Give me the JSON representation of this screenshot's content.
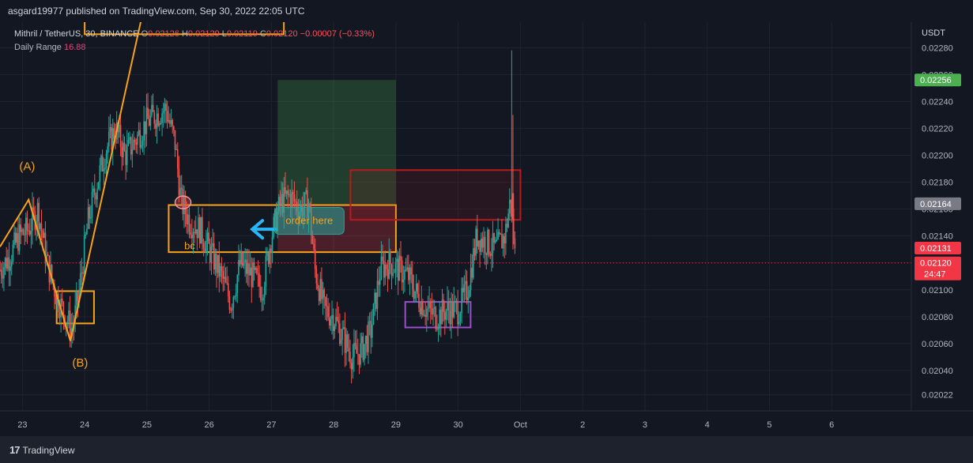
{
  "header": {
    "published_by": "asgard19977 published on TradingView.com, Sep 30, 2022 22:05 UTC"
  },
  "legend": {
    "symbol": "Mithril / TetherUS, 30, BINANCE",
    "open_label": "O",
    "open": "0.02126",
    "high_label": "H",
    "high": "0.02129",
    "low_label": "L",
    "low": "0.02119",
    "close_label": "C",
    "close": "0.02120",
    "change": "−0.00007 (−0.33%)",
    "indicator_label": "Daily Range",
    "indicator_value": "16.88"
  },
  "footer": {
    "brand": "TradingView",
    "brand_mark": "17"
  },
  "colors": {
    "background": "#131722",
    "up": "#26a69a",
    "down": "#ef5350",
    "annotation": "#f7a21b",
    "arrow": "#29b6f6",
    "box_purple": "#9c4dcc",
    "box_red": "#b71c1c",
    "price_green": "#4caf50",
    "price_red": "#f23645",
    "price_gray": "#787b86"
  },
  "chart_data": {
    "type": "candlestick",
    "currency": "USDT",
    "ylim": [
      0.0201,
      0.02299
    ],
    "y_ticks": [
      "0.02022",
      "0.02040",
      "0.02060",
      "0.02080",
      "0.02100",
      "0.02120",
      "0.02140",
      "0.02160",
      "0.02180",
      "0.02200",
      "0.02220",
      "0.02240",
      "0.02260",
      "0.02280"
    ],
    "x_ticks": [
      {
        "label": "23",
        "t": 23.0
      },
      {
        "label": "24",
        "t": 24.0
      },
      {
        "label": "25",
        "t": 25.0
      },
      {
        "label": "26",
        "t": 26.0
      },
      {
        "label": "27",
        "t": 27.0
      },
      {
        "label": "28",
        "t": 28.0
      },
      {
        "label": "29",
        "t": 29.0
      },
      {
        "label": "30",
        "t": 30.0
      },
      {
        "label": "Oct",
        "t": 31.0
      },
      {
        "label": "2",
        "t": 32.0
      },
      {
        "label": "3",
        "t": 33.0
      },
      {
        "label": "4",
        "t": 34.0
      },
      {
        "label": "5",
        "t": 35.0
      },
      {
        "label": "6",
        "t": 36.0
      }
    ],
    "xlim": [
      22.64,
      37.28
    ],
    "price_path": [
      [
        22.64,
        0.02115
      ],
      [
        22.8,
        0.02125
      ],
      [
        22.95,
        0.0214
      ],
      [
        23.1,
        0.02145
      ],
      [
        23.25,
        0.0216
      ],
      [
        23.4,
        0.0212
      ],
      [
        23.55,
        0.02095
      ],
      [
        23.7,
        0.0208
      ],
      [
        23.8,
        0.0207
      ],
      [
        23.9,
        0.02095
      ],
      [
        24.05,
        0.0215
      ],
      [
        24.2,
        0.0218
      ],
      [
        24.35,
        0.02205
      ],
      [
        24.5,
        0.0222
      ],
      [
        24.65,
        0.022
      ],
      [
        24.8,
        0.0221
      ],
      [
        25.0,
        0.02225
      ],
      [
        25.15,
        0.0223
      ],
      [
        25.3,
        0.02235
      ],
      [
        25.45,
        0.0221
      ],
      [
        25.55,
        0.02165
      ],
      [
        25.7,
        0.0215
      ],
      [
        25.85,
        0.02145
      ],
      [
        26.0,
        0.0213
      ],
      [
        26.2,
        0.0211
      ],
      [
        26.35,
        0.0209
      ],
      [
        26.5,
        0.0212
      ],
      [
        26.7,
        0.0211
      ],
      [
        26.85,
        0.021
      ],
      [
        27.0,
        0.0214
      ],
      [
        27.15,
        0.02165
      ],
      [
        27.3,
        0.0217
      ],
      [
        27.45,
        0.0216
      ],
      [
        27.6,
        0.02165
      ],
      [
        27.7,
        0.02115
      ],
      [
        27.85,
        0.02085
      ],
      [
        28.0,
        0.0208
      ],
      [
        28.15,
        0.02065
      ],
      [
        28.3,
        0.0205
      ],
      [
        28.45,
        0.02055
      ],
      [
        28.6,
        0.0207
      ],
      [
        28.75,
        0.02115
      ],
      [
        28.9,
        0.0212
      ],
      [
        29.05,
        0.02115
      ],
      [
        29.2,
        0.0211
      ],
      [
        29.35,
        0.02095
      ],
      [
        29.5,
        0.02085
      ],
      [
        29.65,
        0.0208
      ],
      [
        29.8,
        0.02085
      ],
      [
        30.0,
        0.02085
      ],
      [
        30.15,
        0.021
      ],
      [
        30.3,
        0.0214
      ],
      [
        30.45,
        0.02135
      ],
      [
        30.6,
        0.0213
      ],
      [
        30.75,
        0.0214
      ],
      [
        30.85,
        0.0217
      ],
      [
        30.92,
        0.0212
      ]
    ],
    "last_price": "0.02120",
    "countdown": "24:47",
    "price_labels": [
      {
        "value": "0.02256",
        "price": 0.02256,
        "color": "#4caf50"
      },
      {
        "value": "0.02164",
        "price": 0.02164,
        "color": "#787b86"
      },
      {
        "value": "0.02131",
        "price": 0.02131,
        "color": "#f23645"
      }
    ],
    "annotations": {
      "label_a": "(A)",
      "label_b": "(B)",
      "label_bc": "bc",
      "order_note": "order here",
      "wave_path": [
        [
          22.64,
          0.02132
        ],
        [
          23.1,
          0.02167
        ],
        [
          23.77,
          0.02062
        ],
        [
          25.0,
          0.0232
        ]
      ],
      "boxes": [
        {
          "name": "wave-b-box",
          "t0": 23.55,
          "t1": 24.15,
          "p0": 0.02075,
          "p1": 0.02099,
          "color": "#f7a21b"
        },
        {
          "name": "bc-zone-box",
          "t0": 25.35,
          "t1": 29.0,
          "p0": 0.02128,
          "p1": 0.02163,
          "color": "#f7a21b"
        },
        {
          "name": "resistance-box",
          "t0": 28.27,
          "t1": 31.0,
          "p0": 0.02152,
          "p1": 0.02189,
          "color": "#b71c1c"
        },
        {
          "name": "support-box",
          "t0": 29.15,
          "t1": 30.2,
          "p0": 0.02072,
          "p1": 0.02091,
          "color": "#9c4dcc"
        },
        {
          "name": "title-box",
          "t0": 24.0,
          "t1": 27.2,
          "p0": 0.0229,
          "p1": 0.0231,
          "color": "#f7a21b"
        }
      ],
      "position": {
        "t0": 27.1,
        "t1": 29.0,
        "entry": 0.02163,
        "target": 0.02256,
        "stop": 0.02128
      }
    }
  }
}
